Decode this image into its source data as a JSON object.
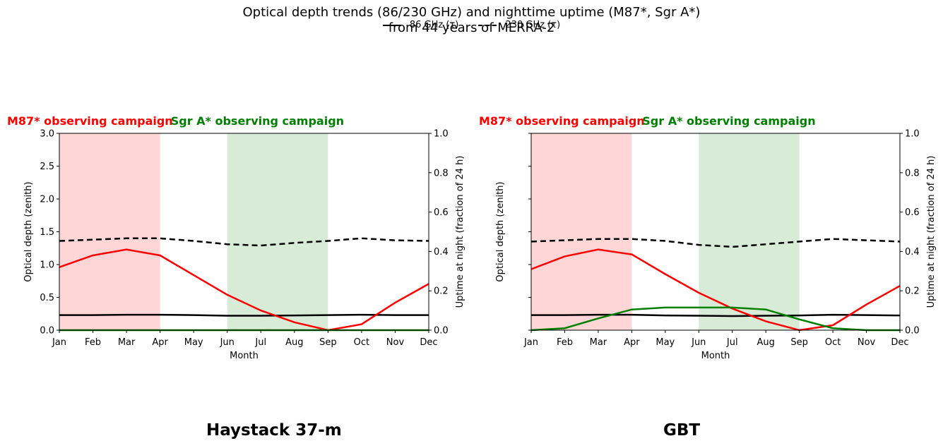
{
  "figure": {
    "title_line1": "Optical depth trends (86/230 GHz) and nighttime uptime (M87*, Sgr A*)",
    "title_line2": "from 44 years of MERRA-2"
  },
  "legend": {
    "entry_86": "86 GHz (τ)",
    "entry_230": "230 GHz (τ)"
  },
  "colors": {
    "tau86": "#000000",
    "tau230": "#000000",
    "m87_uptime": "#ff0000",
    "sgra_uptime": "#008000",
    "m87_band": "#ffd6d6",
    "sgra_band": "#d7ebd7",
    "m87_label": "#ff0000",
    "sgra_label": "#008000"
  },
  "chart_data": [
    {
      "type": "line",
      "station": "Haystack 37-m",
      "m87_campaign_label": "M87* observing campaign",
      "sgra_campaign_label": "Sgr A* observing campaign",
      "m87_campaign_months": [
        "Jan",
        "Apr"
      ],
      "sgra_campaign_months": [
        "Jun",
        "Sep"
      ],
      "xlabel": "Month",
      "ylabel_left": "Optical depth (zenith)",
      "ylabel_right": "Uptime at night (fraction of 24 h)",
      "categories": [
        "Jan",
        "Feb",
        "Mar",
        "Apr",
        "May",
        "Jun",
        "Jul",
        "Aug",
        "Sep",
        "Oct",
        "Nov",
        "Dec"
      ],
      "ylim_left": [
        0,
        3.0
      ],
      "yticks_left": [
        "0.0",
        "0.5",
        "1.0",
        "1.5",
        "2.0",
        "2.5",
        "3.0"
      ],
      "ylim_right": [
        0,
        1.0
      ],
      "yticks_right": [
        "0.0",
        "0.2",
        "0.4",
        "0.6",
        "0.8",
        "1.0"
      ],
      "series": [
        {
          "name": "86 GHz (τ)",
          "axis": "left",
          "style": "solid",
          "values": [
            0.23,
            0.23,
            0.235,
            0.235,
            0.23,
            0.22,
            0.22,
            0.225,
            0.23,
            0.235,
            0.23,
            0.23
          ]
        },
        {
          "name": "230 GHz (τ)",
          "axis": "left",
          "style": "dashed",
          "values": [
            1.36,
            1.38,
            1.4,
            1.4,
            1.36,
            1.31,
            1.29,
            1.33,
            1.36,
            1.4,
            1.37,
            1.36
          ]
        },
        {
          "axis": "right",
          "style": "red",
          "values": [
            0.32,
            0.38,
            0.41,
            0.38,
            0.28,
            0.18,
            0.1,
            0.04,
            0.0,
            0.03,
            0.14,
            0.235
          ]
        },
        {
          "axis": "right",
          "style": "green",
          "values": [
            0,
            0,
            0,
            0,
            0,
            0,
            0,
            0,
            0,
            0,
            0,
            0
          ]
        }
      ]
    },
    {
      "type": "line",
      "station": "GBT",
      "m87_campaign_label": "M87* observing campaign",
      "sgra_campaign_label": "Sgr A* observing campaign",
      "m87_campaign_months": [
        "Jan",
        "Apr"
      ],
      "sgra_campaign_months": [
        "Jun",
        "Sep"
      ],
      "xlabel": "Month",
      "ylabel_left": "Optical depth (zenith)",
      "ylabel_right": "Uptime at night (fraction of 24 h)",
      "categories": [
        "Jan",
        "Feb",
        "Mar",
        "Apr",
        "May",
        "Jun",
        "Jul",
        "Aug",
        "Sep",
        "Oct",
        "Nov",
        "Dec"
      ],
      "ylim_left": [
        0,
        3.0
      ],
      "yticks_left": [],
      "ylim_right": [
        0,
        1.0
      ],
      "yticks_right": [
        "0.0",
        "0.2",
        "0.4",
        "0.6",
        "0.8",
        "1.0"
      ],
      "series": [
        {
          "name": "86 GHz (τ)",
          "axis": "left",
          "style": "solid",
          "values": [
            0.23,
            0.23,
            0.235,
            0.235,
            0.225,
            0.22,
            0.215,
            0.22,
            0.225,
            0.235,
            0.23,
            0.225
          ]
        },
        {
          "name": "230 GHz (τ)",
          "axis": "left",
          "style": "dashed",
          "values": [
            1.35,
            1.37,
            1.39,
            1.39,
            1.36,
            1.3,
            1.27,
            1.31,
            1.35,
            1.39,
            1.37,
            1.35
          ]
        },
        {
          "axis": "right",
          "style": "red",
          "values": [
            0.31,
            0.375,
            0.41,
            0.385,
            0.285,
            0.19,
            0.11,
            0.045,
            0.0,
            0.025,
            0.13,
            0.225
          ]
        },
        {
          "axis": "right",
          "style": "green",
          "values": [
            0.0,
            0.01,
            0.06,
            0.105,
            0.115,
            0.115,
            0.115,
            0.105,
            0.055,
            0.01,
            0.0,
            0.0
          ]
        }
      ]
    }
  ]
}
